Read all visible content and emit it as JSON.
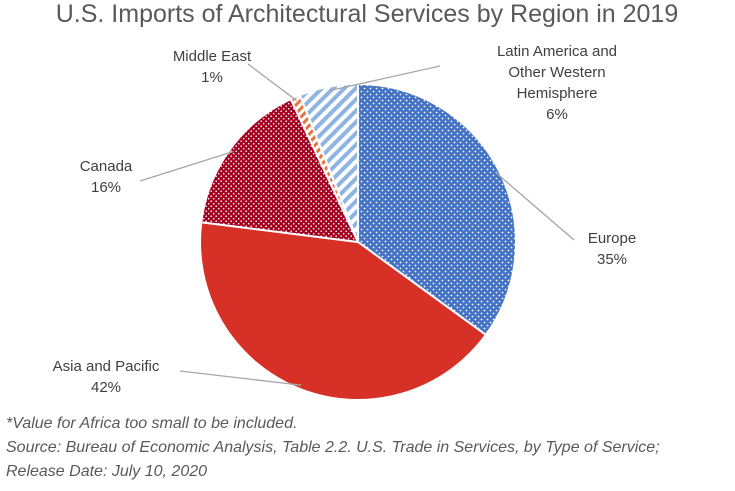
{
  "chart_data": {
    "type": "pie",
    "title": "U.S. Imports of Architectural Services by Region in 2019",
    "slices": [
      {
        "name": "Latin America and Other Western Hemisphere",
        "label_lines": [
          "Latin America and",
          "Other Western",
          "Hemisphere"
        ],
        "value": 6,
        "pct_label": "6%",
        "color": "#8db4e2",
        "pattern": "diagonal-stripes"
      },
      {
        "name": "Europe",
        "label_lines": [
          "Europe"
        ],
        "value": 35,
        "pct_label": "35%",
        "color": "#4472c4",
        "pattern": "dots"
      },
      {
        "name": "Asia and Pacific",
        "label_lines": [
          "Asia and Pacific"
        ],
        "value": 42,
        "pct_label": "42%",
        "color": "#d73027",
        "pattern": "solid"
      },
      {
        "name": "Canada",
        "label_lines": [
          "Canada"
        ],
        "value": 16,
        "pct_label": "16%",
        "color": "#a50021",
        "pattern": "dots"
      },
      {
        "name": "Middle East",
        "label_lines": [
          "Middle East"
        ],
        "value": 1,
        "pct_label": "1%",
        "color": "#e8743b",
        "pattern": "diagonal-stripes"
      }
    ],
    "legend": "none",
    "labels": "outside-with-leader-lines"
  },
  "notes": {
    "line1": "*Value for Africa too small to be included.",
    "line2": "Source: Bureau of Economic Analysis, Table 2.2. U.S. Trade in Services, by Type of Service;",
    "line3": "Release Date: July 10, 2020"
  }
}
